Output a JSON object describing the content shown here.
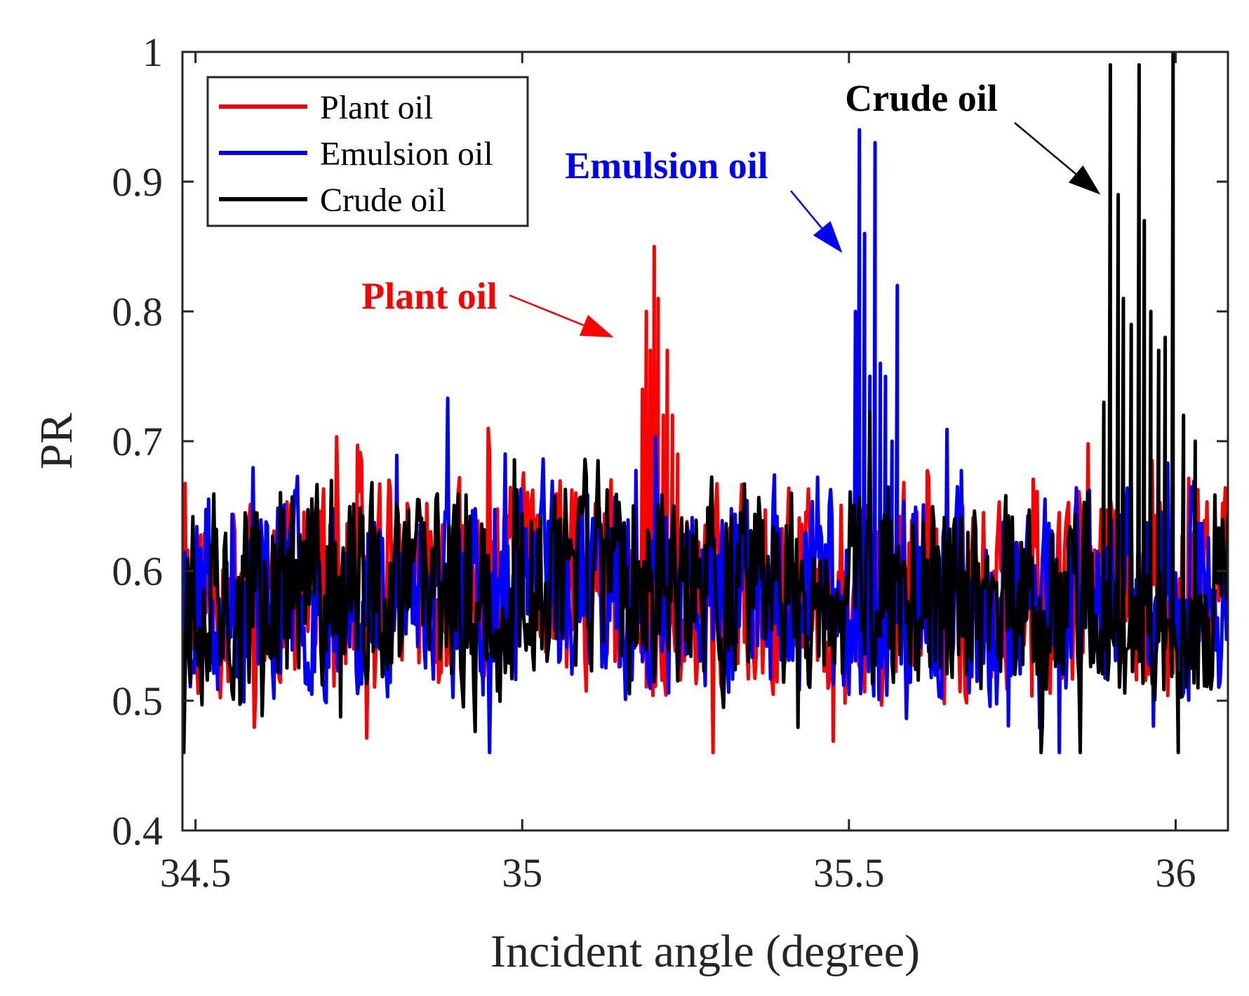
{
  "chart_data": {
    "type": "line",
    "title": "",
    "xlabel": "Incident angle (degree)",
    "ylabel": "PR",
    "xlim": [
      34.48,
      36.08
    ],
    "ylim": [
      0.4,
      1.0
    ],
    "xticks": [
      34.5,
      35,
      35.5,
      36
    ],
    "xtick_labels": [
      "34.5",
      "35",
      "35.5",
      "36"
    ],
    "yticks": [
      0.4,
      0.5,
      0.6,
      0.7,
      0.8,
      0.9,
      1.0
    ],
    "ytick_labels": [
      "0.4",
      "0.5",
      "0.6",
      "0.7",
      "0.8",
      "0.9",
      "1"
    ],
    "grid": false,
    "legend_position": "top-left",
    "noise": {
      "baseline": 0.585,
      "min": 0.46,
      "max": 0.76,
      "step": 0.002
    },
    "series": [
      {
        "name": "Plant oil",
        "color": "#ff0000",
        "seed": 11,
        "peak_region": [
          35.17,
          35.25
        ],
        "peaks": [
          {
            "x": 35.184,
            "y": 0.74
          },
          {
            "x": 35.19,
            "y": 0.8
          },
          {
            "x": 35.196,
            "y": 0.77
          },
          {
            "x": 35.202,
            "y": 0.85
          },
          {
            "x": 35.208,
            "y": 0.81
          },
          {
            "x": 35.216,
            "y": 0.72
          },
          {
            "x": 35.222,
            "y": 0.77
          },
          {
            "x": 35.23,
            "y": 0.72
          },
          {
            "x": 35.238,
            "y": 0.69
          }
        ]
      },
      {
        "name": "Emulsion oil",
        "color": "#0000ff",
        "seed": 23,
        "peak_region": [
          35.5,
          35.58
        ],
        "peaks": [
          {
            "x": 35.51,
            "y": 0.8
          },
          {
            "x": 35.516,
            "y": 0.94
          },
          {
            "x": 35.524,
            "y": 0.86
          },
          {
            "x": 35.532,
            "y": 0.75
          },
          {
            "x": 35.54,
            "y": 0.93
          },
          {
            "x": 35.548,
            "y": 0.76
          },
          {
            "x": 35.556,
            "y": 0.75
          },
          {
            "x": 35.566,
            "y": 0.7
          },
          {
            "x": 35.574,
            "y": 0.82
          }
        ]
      },
      {
        "name": "Crude oil",
        "color": "#000000",
        "seed": 37,
        "peak_region": [
          35.88,
          36.06
        ],
        "peaks": [
          {
            "x": 35.89,
            "y": 0.73
          },
          {
            "x": 35.9,
            "y": 0.99
          },
          {
            "x": 35.912,
            "y": 0.89
          },
          {
            "x": 35.92,
            "y": 0.81
          },
          {
            "x": 35.932,
            "y": 0.79
          },
          {
            "x": 35.944,
            "y": 0.99
          },
          {
            "x": 35.952,
            "y": 0.87
          },
          {
            "x": 35.962,
            "y": 0.8
          },
          {
            "x": 35.974,
            "y": 0.77
          },
          {
            "x": 35.984,
            "y": 0.78
          },
          {
            "x": 35.996,
            "y": 1.0
          },
          {
            "x": 36.004,
            "y": 0.46
          },
          {
            "x": 36.012,
            "y": 0.72
          },
          {
            "x": 36.03,
            "y": 0.7
          }
        ]
      }
    ],
    "annotations": [
      {
        "text": "Plant oil",
        "color": "#ff0000",
        "arrow_to": {
          "x": 35.14,
          "y": 0.78
        }
      },
      {
        "text": "Emulsion oil",
        "color": "#0000ff",
        "arrow_to": {
          "x": 35.49,
          "y": 0.845
        }
      },
      {
        "text": "Crude oil",
        "color": "#000000",
        "arrow_to": {
          "x": 35.885,
          "y": 0.89
        }
      }
    ]
  }
}
